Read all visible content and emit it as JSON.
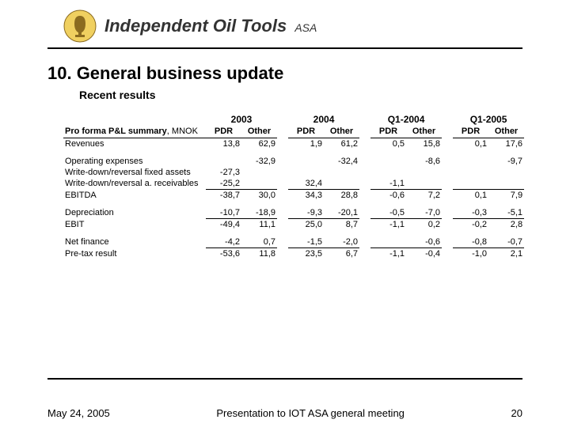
{
  "header": {
    "company_name": "Independent Oil Tools",
    "company_suffix": "ASA",
    "logo_bg": "#f0d060",
    "logo_fg": "#8b6b1f"
  },
  "title": "10. General business update",
  "subtitle": "Recent results",
  "table": {
    "summary_label": "Pro forma P&L summary",
    "summary_unit": ", MNOK",
    "periods": [
      "2003",
      "2004",
      "Q1-2004",
      "Q1-2005"
    ],
    "sub_headers": [
      "PDR",
      "Other"
    ],
    "rows": [
      {
        "label": "Revenues",
        "vals": [
          "13,8",
          "62,9",
          "1,9",
          "61,2",
          "0,5",
          "15,8",
          "0,1",
          "17,6"
        ],
        "bb": false
      },
      {
        "spacer": true
      },
      {
        "label": "Operating expenses",
        "vals": [
          "",
          "-32,9",
          "",
          "-32,4",
          "",
          "-8,6",
          "",
          "-9,7"
        ],
        "bb": false
      },
      {
        "label": "Write-down/reversal fixed assets",
        "vals": [
          "-27,3",
          "",
          "",
          "",
          "",
          "",
          "",
          ""
        ],
        "bb": false
      },
      {
        "label": "Write-down/reversal a. receivables",
        "vals": [
          "-25,2",
          "",
          "32,4",
          "",
          "-1,1",
          "",
          "",
          ""
        ],
        "bb": true
      },
      {
        "label": "EBITDA",
        "vals": [
          "-38,7",
          "30,0",
          "34,3",
          "28,8",
          "-0,6",
          "7,2",
          "0,1",
          "7,9"
        ],
        "bb": false
      },
      {
        "spacer": true
      },
      {
        "label": "Depreciation",
        "vals": [
          "-10,7",
          "-18,9",
          "-9,3",
          "-20,1",
          "-0,5",
          "-7,0",
          "-0,3",
          "-5,1"
        ],
        "bb": true
      },
      {
        "label": "EBIT",
        "vals": [
          "-49,4",
          "11,1",
          "25,0",
          "8,7",
          "-1,1",
          "0,2",
          "-0,2",
          "2,8"
        ],
        "bb": false
      },
      {
        "spacer": true
      },
      {
        "label": "Net finance",
        "vals": [
          "-4,2",
          "0,7",
          "-1,5",
          "-2,0",
          "",
          "-0,6",
          "-0,8",
          "-0,7"
        ],
        "bb": true
      },
      {
        "label": "Pre-tax result",
        "vals": [
          "-53,6",
          "11,8",
          "23,5",
          "6,7",
          "-1,1",
          "-0,4",
          "-1,0",
          "2,1"
        ],
        "bb": false
      }
    ]
  },
  "footer": {
    "date": "May 24, 2005",
    "center": "Presentation to IOT ASA general meeting",
    "page": "20"
  }
}
